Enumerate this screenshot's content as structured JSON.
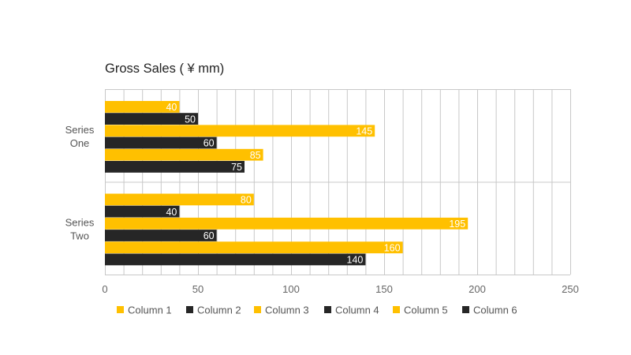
{
  "chart_data": {
    "type": "bar",
    "orientation": "horizontal",
    "title": "Gross Sales ( ¥ mm)",
    "categories": [
      {
        "name": "Series One",
        "lines": [
          "Series",
          "One"
        ]
      },
      {
        "name": "Series Two",
        "lines": [
          "Series",
          "Two"
        ]
      }
    ],
    "series": [
      {
        "name": "Column 1",
        "color": "#FFC000",
        "values": [
          40,
          80
        ]
      },
      {
        "name": "Column 2",
        "color": "#262626",
        "values": [
          50,
          40
        ]
      },
      {
        "name": "Column 3",
        "color": "#FFC000",
        "values": [
          145,
          195
        ]
      },
      {
        "name": "Column 4",
        "color": "#262626",
        "values": [
          60,
          60
        ]
      },
      {
        "name": "Column 5",
        "color": "#FFC000",
        "values": [
          85,
          160
        ]
      },
      {
        "name": "Column 6",
        "color": "#262626",
        "values": [
          75,
          140
        ]
      }
    ],
    "xlim": [
      0,
      250
    ],
    "x_ticks": [
      0,
      50,
      100,
      150,
      200,
      250
    ],
    "minor_gridline_step": 10,
    "grid": true,
    "xlabel": "",
    "ylabel": "",
    "legend": "bottom"
  }
}
